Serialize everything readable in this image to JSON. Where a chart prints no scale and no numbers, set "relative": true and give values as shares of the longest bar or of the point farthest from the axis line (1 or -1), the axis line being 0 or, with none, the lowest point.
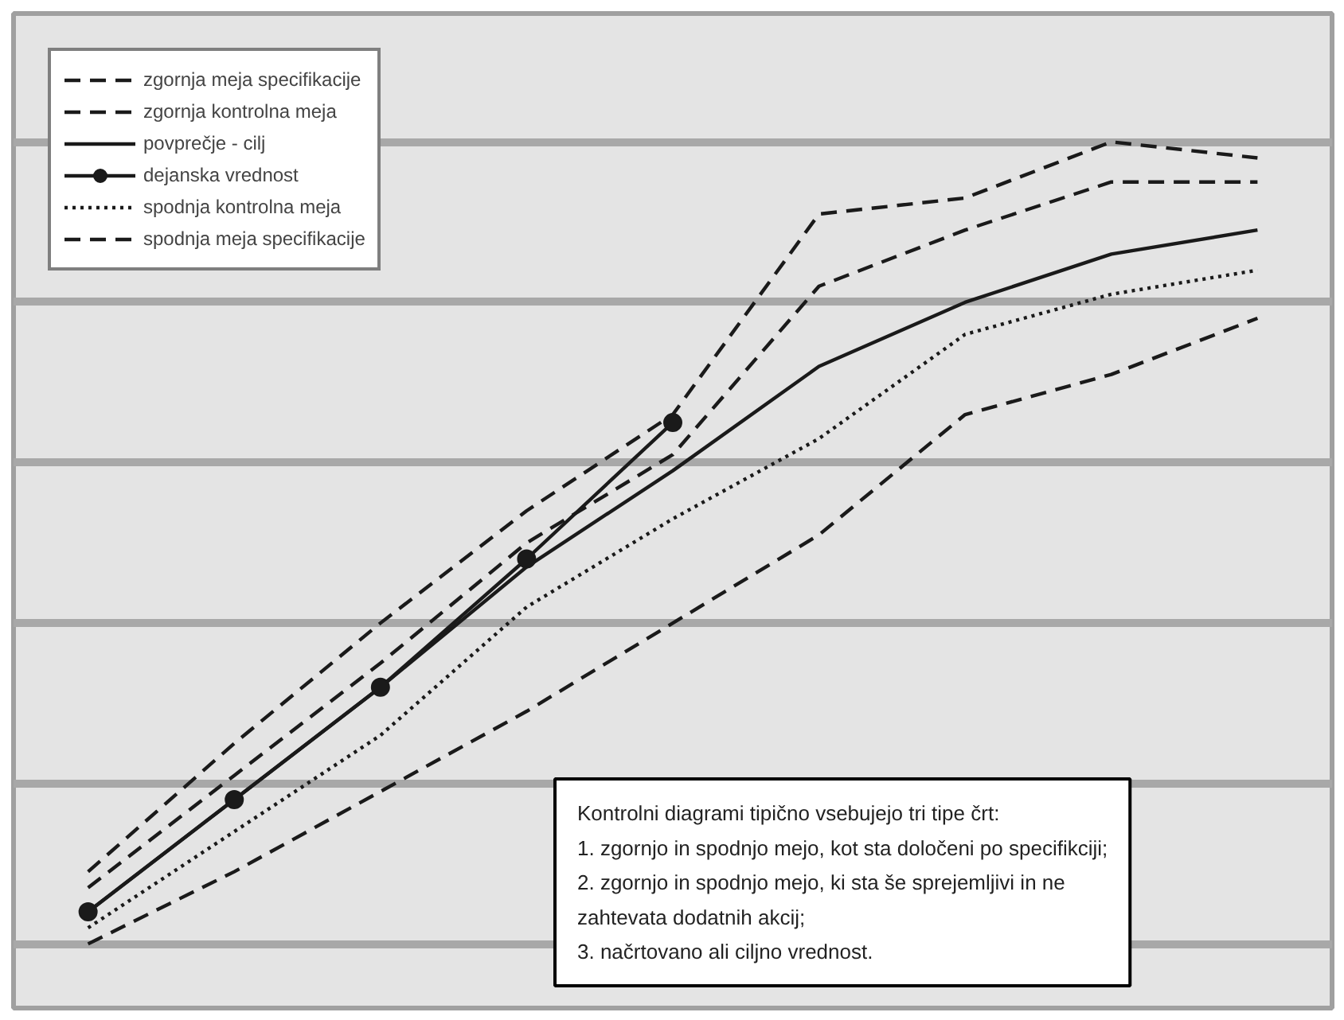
{
  "chart_data": {
    "type": "line",
    "relative": true,
    "categories": [
      null,
      null,
      null,
      null,
      null,
      null,
      null,
      null,
      null
    ],
    "legend": "top left",
    "grid": "y",
    "series": [
      {
        "name": "zgornja meja specifikacije",
        "color": "#1a1a1a",
        "line_style": "dashed",
        "values": [
          0.09,
          0.25,
          0.4,
          0.54,
          0.66,
          0.91,
          0.93,
          1.0,
          0.98
        ]
      },
      {
        "name": "zgornja kontrolna meja",
        "color": "#1a1a1a",
        "line_style": "dashed",
        "values": [
          0.07,
          0.21,
          0.35,
          0.5,
          0.61,
          0.82,
          0.89,
          0.95,
          0.95
        ]
      },
      {
        "name": "povprečje - cilj",
        "color": "#1a1a1a",
        "line_style": "solid",
        "values": [
          0.04,
          0.18,
          0.32,
          0.47,
          0.59,
          0.72,
          0.8,
          0.86,
          0.89
        ]
      },
      {
        "name": "dejanska vrednost",
        "color": "#1a1a1a",
        "line_style": "solid",
        "marker": "circle",
        "values": [
          0.04,
          0.18,
          0.32,
          0.48,
          0.65,
          null,
          null,
          null,
          null
        ]
      },
      {
        "name": "spodnja kontrolna meja",
        "color": "#1a1a1a",
        "line_style": "dotted",
        "values": [
          0.02,
          0.14,
          0.26,
          0.42,
          0.53,
          0.63,
          0.76,
          0.81,
          0.84
        ]
      },
      {
        "name": "spodnja meja specifikacije",
        "color": "#1a1a1a",
        "line_style": "dashed",
        "values": [
          0.0,
          0.09,
          0.19,
          0.29,
          0.4,
          0.51,
          0.66,
          0.71,
          0.78
        ]
      }
    ],
    "annotations": [
      "Kontrolni diagrami tipično vsebujejo tri tipe črt:",
      "1. zgornjo in spodnjo mejo, kot sta določeni po specifikciji;",
      "2. zgornjo in spodnjo mejo, ki sta še sprejemljivi in ne zahtevata dodatnih akcij;",
      "3. načrtovano ali ciljno vrednost."
    ]
  }
}
